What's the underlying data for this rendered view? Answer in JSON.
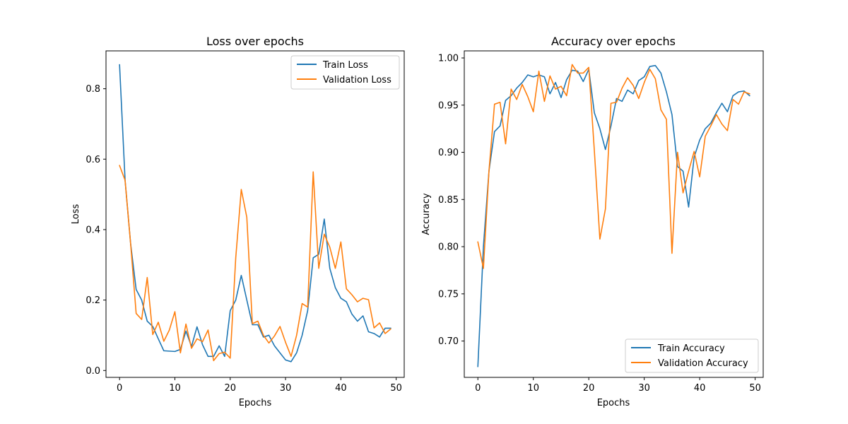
{
  "chart_data": [
    {
      "type": "line",
      "title": "Loss over epochs",
      "xlabel": "Epochs",
      "ylabel": "Loss",
      "xlim": [
        -2.45,
        51.45
      ],
      "ylim": [
        -0.0195,
        0.9075
      ],
      "xticks": [
        0,
        10,
        20,
        30,
        40,
        50
      ],
      "yticks": [
        0.0,
        0.2,
        0.4,
        0.6,
        0.8
      ],
      "ytick_labels": [
        "0.0",
        "0.2",
        "0.4",
        "0.6",
        "0.8"
      ],
      "grid": false,
      "legend": "upper right",
      "x": [
        0,
        1,
        2,
        3,
        4,
        5,
        6,
        7,
        8,
        9,
        10,
        11,
        12,
        13,
        14,
        15,
        16,
        17,
        18,
        19,
        20,
        21,
        22,
        23,
        24,
        25,
        26,
        27,
        28,
        29,
        30,
        31,
        32,
        33,
        34,
        35,
        36,
        37,
        38,
        39,
        40,
        41,
        42,
        43,
        44,
        45,
        46,
        47,
        48,
        49
      ],
      "series": [
        {
          "name": "Train Loss",
          "color": "#1f77b4",
          "values": [
            0.868,
            0.54,
            0.36,
            0.23,
            0.2,
            0.14,
            0.125,
            0.09,
            0.056,
            0.055,
            0.054,
            0.06,
            0.112,
            0.068,
            0.124,
            0.073,
            0.04,
            0.04,
            0.07,
            0.04,
            0.17,
            0.2,
            0.27,
            0.2,
            0.13,
            0.13,
            0.095,
            0.1,
            0.07,
            0.05,
            0.03,
            0.025,
            0.05,
            0.1,
            0.17,
            0.32,
            0.33,
            0.43,
            0.29,
            0.235,
            0.205,
            0.195,
            0.16,
            0.14,
            0.155,
            0.11,
            0.105,
            0.095,
            0.12,
            0.12
          ]
        },
        {
          "name": "Validation Loss",
          "color": "#ff7f0e",
          "values": [
            0.582,
            0.54,
            0.36,
            0.162,
            0.145,
            0.264,
            0.102,
            0.137,
            0.083,
            0.115,
            0.167,
            0.05,
            0.132,
            0.063,
            0.09,
            0.082,
            0.115,
            0.028,
            0.048,
            0.052,
            0.035,
            0.32,
            0.514,
            0.435,
            0.133,
            0.14,
            0.1,
            0.078,
            0.098,
            0.125,
            0.08,
            0.04,
            0.1,
            0.19,
            0.18,
            0.564,
            0.29,
            0.387,
            0.35,
            0.29,
            0.365,
            0.232,
            0.215,
            0.195,
            0.205,
            0.201,
            0.121,
            0.135,
            0.105,
            0.118
          ]
        }
      ]
    },
    {
      "type": "line",
      "title": "Accuracy over epochs",
      "xlabel": "Epochs",
      "ylabel": "Accuracy",
      "xlim": [
        -2.45,
        51.45
      ],
      "ylim": [
        0.6615,
        1.0075
      ],
      "xticks": [
        0,
        10,
        20,
        30,
        40,
        50
      ],
      "yticks": [
        0.7,
        0.75,
        0.8,
        0.85,
        0.9,
        0.95,
        1.0
      ],
      "ytick_labels": [
        "0.70",
        "0.75",
        "0.80",
        "0.85",
        "0.90",
        "0.95",
        "1.00"
      ],
      "grid": false,
      "legend": "lower right",
      "x": [
        0,
        1,
        2,
        3,
        4,
        5,
        6,
        7,
        8,
        9,
        10,
        11,
        12,
        13,
        14,
        15,
        16,
        17,
        18,
        19,
        20,
        21,
        22,
        23,
        24,
        25,
        26,
        27,
        28,
        29,
        30,
        31,
        32,
        33,
        34,
        35,
        36,
        37,
        38,
        39,
        40,
        41,
        42,
        43,
        44,
        45,
        46,
        47,
        48,
        49
      ],
      "series": [
        {
          "name": "Train Accuracy",
          "color": "#1f77b4",
          "values": [
            0.673,
            0.8,
            0.88,
            0.922,
            0.928,
            0.955,
            0.96,
            0.968,
            0.974,
            0.982,
            0.98,
            0.982,
            0.98,
            0.962,
            0.974,
            0.958,
            0.977,
            0.987,
            0.986,
            0.975,
            0.988,
            0.942,
            0.925,
            0.903,
            0.928,
            0.957,
            0.954,
            0.966,
            0.962,
            0.976,
            0.98,
            0.991,
            0.992,
            0.984,
            0.964,
            0.94,
            0.885,
            0.88,
            0.842,
            0.895,
            0.913,
            0.925,
            0.931,
            0.942,
            0.952,
            0.943,
            0.96,
            0.964,
            0.965,
            0.96
          ]
        },
        {
          "name": "Validation Accuracy",
          "color": "#ff7f0e",
          "values": [
            0.805,
            0.777,
            0.88,
            0.951,
            0.953,
            0.909,
            0.967,
            0.956,
            0.972,
            0.959,
            0.943,
            0.986,
            0.954,
            0.981,
            0.967,
            0.97,
            0.96,
            0.993,
            0.984,
            0.984,
            0.99,
            0.902,
            0.808,
            0.84,
            0.952,
            0.953,
            0.968,
            0.979,
            0.971,
            0.957,
            0.974,
            0.988,
            0.978,
            0.945,
            0.935,
            0.793,
            0.9,
            0.857,
            0.88,
            0.901,
            0.874,
            0.917,
            0.928,
            0.94,
            0.93,
            0.923,
            0.956,
            0.951,
            0.964,
            0.962
          ]
        }
      ]
    }
  ]
}
